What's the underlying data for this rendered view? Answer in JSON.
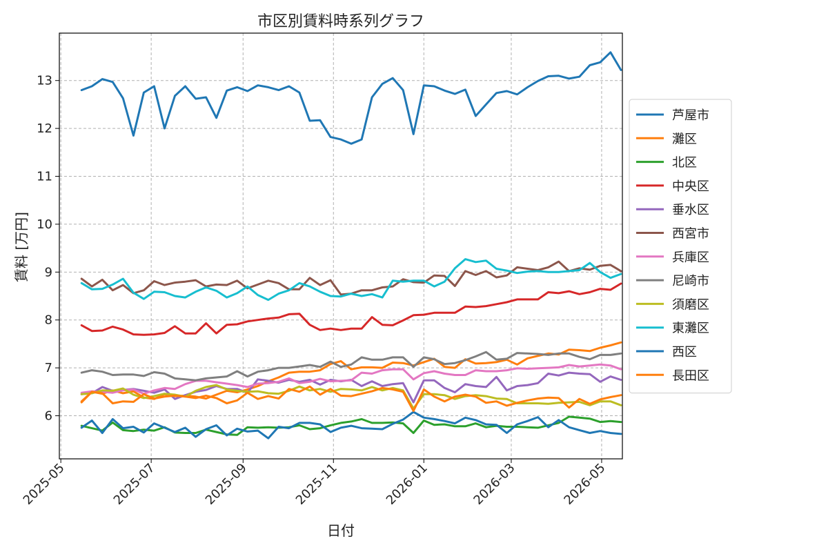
{
  "chart_data": {
    "type": "line",
    "title": "市区別賃料時系列グラフ",
    "xlabel": "日付",
    "ylabel": "賃料 [万円]",
    "ylim": [
      5.1,
      13.99
    ],
    "xlim": [
      "2025-04-30",
      "2026-05-15"
    ],
    "grid": true,
    "legend_position": "right",
    "y_ticks": [
      6,
      7,
      8,
      9,
      10,
      11,
      12,
      13
    ],
    "x_ticks": [
      "2025-05-01",
      "2025-07-01",
      "2025-09-01",
      "2025-11-01",
      "2026-01-01",
      "2026-03-01",
      "2026-05-01"
    ],
    "x_tick_labels": [
      "2025-05",
      "2025-07",
      "2025-09",
      "2025-11",
      "2026-01",
      "2026-03",
      "2026-05"
    ],
    "x": [
      "2025-05-15",
      "2025-05-22",
      "2025-05-29",
      "2025-06-05",
      "2025-06-12",
      "2025-06-19",
      "2025-06-26",
      "2025-07-03",
      "2025-07-10",
      "2025-07-17",
      "2025-07-24",
      "2025-07-31",
      "2025-08-07",
      "2025-08-14",
      "2025-08-21",
      "2025-08-28",
      "2025-09-04",
      "2025-09-11",
      "2025-09-18",
      "2025-09-25",
      "2025-10-02",
      "2025-10-09",
      "2025-10-16",
      "2025-10-23",
      "2025-10-30",
      "2025-11-06",
      "2025-11-13",
      "2025-11-20",
      "2025-11-27",
      "2025-12-04",
      "2025-12-11",
      "2025-12-18",
      "2025-12-25",
      "2026-01-01",
      "2026-01-08",
      "2026-01-15",
      "2026-01-22",
      "2026-01-29",
      "2026-02-05",
      "2026-02-12",
      "2026-02-19",
      "2026-02-26",
      "2026-03-05",
      "2026-03-12",
      "2026-03-19",
      "2026-03-26",
      "2026-04-02",
      "2026-04-09",
      "2026-04-16",
      "2026-04-23",
      "2026-04-30",
      "2026-05-07",
      "2026-05-14"
    ],
    "series": [
      {
        "name": "芦屋市",
        "color": "#1f77b4",
        "values": [
          12.8,
          12.88,
          13.03,
          12.97,
          12.63,
          11.85,
          12.75,
          12.88,
          12.0,
          12.68,
          12.88,
          12.62,
          12.65,
          12.22,
          12.79,
          12.86,
          12.78,
          12.9,
          12.86,
          12.8,
          12.88,
          12.75,
          12.16,
          12.17,
          11.82,
          11.77,
          11.68,
          11.77,
          12.65,
          12.93,
          13.05,
          12.8,
          11.88,
          12.9,
          12.88,
          12.79,
          12.72,
          12.81,
          12.26,
          12.5,
          12.74,
          12.78,
          12.71,
          12.86,
          12.99,
          13.09,
          13.1,
          13.04,
          13.08,
          13.32,
          13.38,
          13.59,
          13.22
        ]
      },
      {
        "name": "灘区",
        "color": "#ff7f0e",
        "values": [
          6.28,
          6.5,
          6.46,
          6.53,
          6.47,
          6.51,
          6.38,
          6.35,
          6.45,
          6.41,
          6.42,
          6.4,
          6.36,
          6.44,
          6.52,
          6.49,
          6.55,
          6.62,
          6.72,
          6.8,
          6.9,
          6.92,
          6.92,
          6.95,
          7.08,
          7.14,
          6.97,
          7.01,
          7.01,
          7.0,
          7.11,
          7.1,
          7.05,
          7.12,
          7.19,
          7.02,
          7.0,
          7.18,
          7.09,
          7.1,
          7.12,
          7.17,
          7.07,
          7.2,
          7.25,
          7.3,
          7.28,
          7.38,
          7.37,
          7.35,
          7.42,
          7.47,
          7.53
        ]
      },
      {
        "name": "北区",
        "color": "#2ca02c",
        "values": [
          5.79,
          5.74,
          5.69,
          5.86,
          5.7,
          5.68,
          5.71,
          5.69,
          5.76,
          5.65,
          5.64,
          5.64,
          5.71,
          5.66,
          5.61,
          5.6,
          5.76,
          5.75,
          5.76,
          5.75,
          5.76,
          5.8,
          5.72,
          5.74,
          5.8,
          5.85,
          5.88,
          5.93,
          5.85,
          5.85,
          5.86,
          5.84,
          5.64,
          5.9,
          5.81,
          5.82,
          5.78,
          5.78,
          5.84,
          5.76,
          5.79,
          5.77,
          5.77,
          5.76,
          5.75,
          5.8,
          5.85,
          5.98,
          5.96,
          5.94,
          5.87,
          5.89,
          5.87
        ]
      },
      {
        "name": "中央区",
        "color": "#d62728",
        "values": [
          7.89,
          7.77,
          7.78,
          7.86,
          7.8,
          7.7,
          7.69,
          7.7,
          7.73,
          7.87,
          7.72,
          7.72,
          7.93,
          7.72,
          7.9,
          7.91,
          7.97,
          8.0,
          8.03,
          8.05,
          8.12,
          8.13,
          7.9,
          7.79,
          7.82,
          7.79,
          7.82,
          7.82,
          8.06,
          7.9,
          7.89,
          7.99,
          8.1,
          8.11,
          8.15,
          8.15,
          8.15,
          8.28,
          8.27,
          8.29,
          8.33,
          8.37,
          8.43,
          8.43,
          8.43,
          8.58,
          8.56,
          8.6,
          8.54,
          8.58,
          8.65,
          8.63,
          8.76
        ]
      },
      {
        "name": "垂水区",
        "color": "#9467bd",
        "values": [
          6.45,
          6.47,
          6.6,
          6.52,
          6.54,
          6.56,
          6.52,
          6.48,
          6.55,
          6.35,
          6.43,
          6.5,
          6.54,
          6.62,
          6.56,
          6.56,
          6.48,
          6.76,
          6.73,
          6.69,
          6.75,
          6.71,
          6.75,
          6.65,
          6.75,
          6.72,
          6.75,
          6.62,
          6.72,
          6.62,
          6.66,
          6.68,
          6.28,
          6.74,
          6.74,
          6.58,
          6.49,
          6.66,
          6.62,
          6.6,
          6.81,
          6.53,
          6.62,
          6.64,
          6.68,
          6.88,
          6.84,
          6.9,
          6.88,
          6.87,
          6.71,
          6.82,
          6.75
        ]
      },
      {
        "name": "西宮市",
        "color": "#8c564b",
        "values": [
          8.86,
          8.7,
          8.84,
          8.62,
          8.73,
          8.56,
          8.62,
          8.81,
          8.73,
          8.78,
          8.8,
          8.83,
          8.7,
          8.74,
          8.73,
          8.82,
          8.66,
          8.74,
          8.82,
          8.77,
          8.64,
          8.64,
          8.88,
          8.73,
          8.83,
          8.53,
          8.55,
          8.62,
          8.62,
          8.68,
          8.7,
          8.85,
          8.79,
          8.78,
          8.93,
          8.92,
          8.71,
          9.02,
          8.94,
          9.02,
          8.89,
          8.93,
          9.1,
          9.07,
          9.04,
          9.1,
          9.22,
          9.02,
          9.08,
          9.05,
          9.13,
          9.15,
          9.02
        ]
      },
      {
        "name": "兵庫区",
        "color": "#e377c2",
        "values": [
          6.48,
          6.51,
          6.5,
          6.48,
          6.53,
          6.55,
          6.46,
          6.53,
          6.58,
          6.56,
          6.66,
          6.73,
          6.73,
          6.7,
          6.67,
          6.64,
          6.6,
          6.67,
          6.68,
          6.71,
          6.78,
          6.68,
          6.71,
          6.77,
          6.72,
          6.73,
          6.74,
          6.9,
          6.88,
          6.95,
          6.97,
          6.97,
          6.76,
          6.89,
          6.93,
          6.88,
          6.85,
          6.85,
          6.95,
          6.93,
          6.93,
          6.95,
          6.99,
          6.98,
          6.99,
          7.0,
          7.01,
          7.06,
          7.03,
          7.05,
          7.07,
          7.05,
          6.97
        ]
      },
      {
        "name": "尼崎市",
        "color": "#7f7f7f",
        "values": [
          6.9,
          6.95,
          6.92,
          6.85,
          6.86,
          6.86,
          6.83,
          6.91,
          6.88,
          6.78,
          6.76,
          6.74,
          6.78,
          6.8,
          6.82,
          6.93,
          6.82,
          6.92,
          6.95,
          7.0,
          7.0,
          7.03,
          7.06,
          7.02,
          7.13,
          7.02,
          7.07,
          7.22,
          7.17,
          7.17,
          7.22,
          7.22,
          7.02,
          7.22,
          7.18,
          7.08,
          7.1,
          7.16,
          7.24,
          7.33,
          7.17,
          7.19,
          7.31,
          7.3,
          7.29,
          7.27,
          7.3,
          7.3,
          7.23,
          7.18,
          7.27,
          7.27,
          7.3
        ]
      },
      {
        "name": "須磨区",
        "color": "#bcbd22",
        "values": [
          6.45,
          6.47,
          6.53,
          6.52,
          6.57,
          6.44,
          6.37,
          6.41,
          6.46,
          6.44,
          6.4,
          6.52,
          6.6,
          6.64,
          6.55,
          6.52,
          6.5,
          6.51,
          6.47,
          6.46,
          6.52,
          6.61,
          6.53,
          6.56,
          6.5,
          6.56,
          6.55,
          6.53,
          6.6,
          6.53,
          6.58,
          6.53,
          6.15,
          6.45,
          6.45,
          6.43,
          6.35,
          6.41,
          6.43,
          6.41,
          6.36,
          6.35,
          6.26,
          6.26,
          6.26,
          6.25,
          6.27,
          6.28,
          6.29,
          6.22,
          6.3,
          6.3,
          6.22
        ]
      },
      {
        "name": "東灘区",
        "color": "#17becf",
        "values": [
          8.77,
          8.64,
          8.65,
          8.74,
          8.86,
          8.57,
          8.44,
          8.59,
          8.58,
          8.5,
          8.47,
          8.59,
          8.68,
          8.61,
          8.47,
          8.56,
          8.7,
          8.52,
          8.42,
          8.55,
          8.62,
          8.77,
          8.7,
          8.59,
          8.5,
          8.49,
          8.55,
          8.5,
          8.54,
          8.47,
          8.82,
          8.8,
          8.82,
          8.82,
          8.7,
          8.8,
          9.08,
          9.27,
          9.21,
          9.24,
          9.07,
          9.03,
          8.98,
          9.01,
          9.02,
          9.0,
          9.0,
          9.02,
          9.04,
          9.19,
          9.0,
          8.88,
          8.96
        ]
      },
      {
        "name": "西区",
        "color": "#1f77b4",
        "values": [
          5.75,
          5.9,
          5.64,
          5.93,
          5.74,
          5.77,
          5.65,
          5.84,
          5.75,
          5.66,
          5.75,
          5.56,
          5.72,
          5.8,
          5.59,
          5.73,
          5.67,
          5.69,
          5.53,
          5.77,
          5.74,
          5.85,
          5.85,
          5.82,
          5.66,
          5.75,
          5.79,
          5.74,
          5.73,
          5.72,
          5.83,
          5.92,
          6.08,
          5.96,
          5.93,
          5.89,
          5.84,
          5.96,
          5.91,
          5.82,
          5.81,
          5.64,
          5.82,
          5.89,
          5.97,
          5.76,
          5.91,
          5.76,
          5.7,
          5.64,
          5.68,
          5.64,
          5.62
        ]
      },
      {
        "name": "長田区",
        "color": "#ff7f0e",
        "values": [
          6.3,
          6.5,
          6.47,
          6.26,
          6.3,
          6.29,
          6.45,
          6.36,
          6.4,
          6.42,
          6.4,
          6.37,
          6.42,
          6.37,
          6.26,
          6.32,
          6.48,
          6.35,
          6.41,
          6.36,
          6.56,
          6.5,
          6.61,
          6.44,
          6.56,
          6.42,
          6.41,
          6.46,
          6.51,
          6.58,
          6.55,
          6.5,
          6.1,
          6.55,
          6.4,
          6.3,
          6.4,
          6.44,
          6.4,
          6.27,
          6.3,
          6.21,
          6.27,
          6.32,
          6.36,
          6.38,
          6.37,
          6.17,
          6.35,
          6.25,
          6.34,
          6.39,
          6.43
        ]
      }
    ]
  }
}
